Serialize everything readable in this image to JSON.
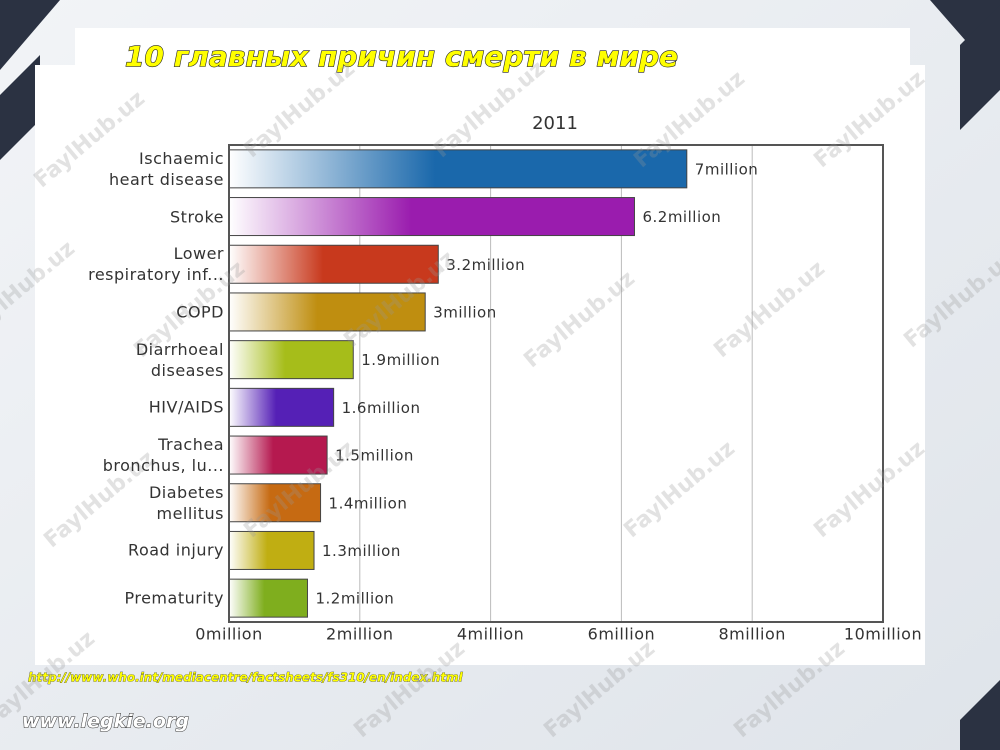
{
  "chart_data": {
    "type": "bar",
    "orientation": "horizontal",
    "title": "10 главных причин смерти  в мире",
    "subtitle": "2011",
    "categories": [
      "Ischaemic\nheart disease",
      "Stroke",
      "Lower\nrespiratory inf...",
      "COPD",
      "Diarrhoeal\ndiseases",
      "HIV/AIDS",
      "Trachea\nbronchus, lu...",
      "Diabetes\nmellitus",
      "Road injury",
      "Prematurity"
    ],
    "values": [
      7,
      6.2,
      3.2,
      3,
      1.9,
      1.6,
      1.5,
      1.4,
      1.3,
      1.2
    ],
    "value_labels": [
      "7million",
      "6.2million",
      "3.2million",
      "3million",
      "1.9million",
      "1.6million",
      "1.5million",
      "1.4million",
      "1.3million",
      "1.2million"
    ],
    "colors": [
      "#1a68ab",
      "#9a1cae",
      "#c8391d",
      "#bf8e10",
      "#a6bd1a",
      "#5520b6",
      "#b5194f",
      "#c66a12",
      "#c0ae12",
      "#7fae1e"
    ],
    "xlim": [
      0,
      10
    ],
    "xticks": [
      {
        "value": 0,
        "label": "0million"
      },
      {
        "value": 2,
        "label": "2million"
      },
      {
        "value": 4,
        "label": "4million"
      },
      {
        "value": 6,
        "label": "6million"
      },
      {
        "value": 8,
        "label": "8million"
      },
      {
        "value": 10,
        "label": "10million"
      }
    ],
    "grid": true
  },
  "footer": {
    "source": "http://www.who.int/mediacentre/factsheets/fs310/en/index.html",
    "site": "www.legkie.org",
    "watermark": "FaylHub.uz"
  }
}
